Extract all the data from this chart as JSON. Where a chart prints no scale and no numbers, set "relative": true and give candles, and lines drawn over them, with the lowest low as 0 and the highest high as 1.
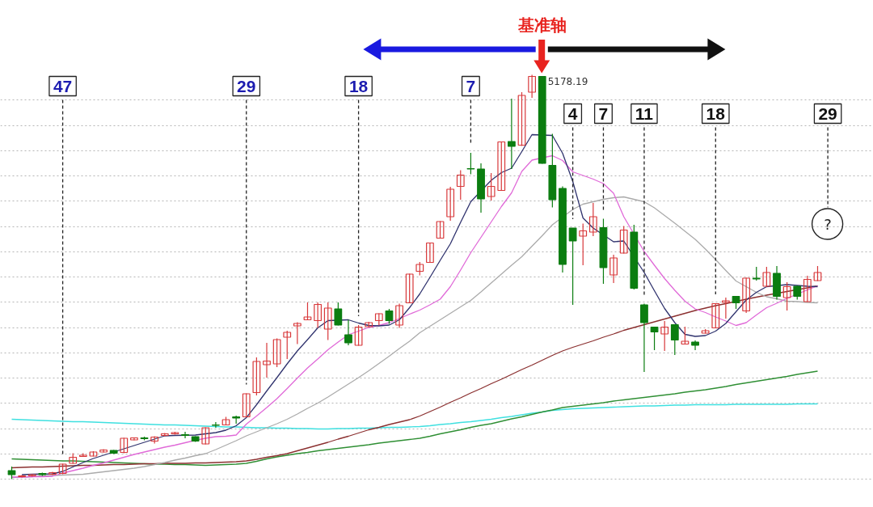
{
  "chart_data": {
    "type": "candlestick",
    "relative": true,
    "grid": "y",
    "categories": [
      null,
      null,
      null,
      null,
      null,
      null,
      null,
      null,
      null,
      null,
      null,
      null,
      null,
      null,
      null,
      null,
      null,
      null,
      null,
      null,
      null,
      null,
      null,
      null,
      null,
      null,
      null,
      null,
      null,
      null,
      null,
      null,
      null,
      null,
      null,
      null,
      null,
      null,
      null,
      null,
      null,
      null,
      null,
      null,
      null,
      null,
      null,
      null,
      null,
      null,
      null,
      null,
      null,
      null,
      null,
      null,
      null,
      null,
      null,
      null,
      null,
      null,
      null,
      null,
      null,
      null,
      null,
      null,
      null,
      null,
      null,
      null,
      null,
      null,
      null,
      null,
      null,
      null,
      null,
      null,
      null
    ],
    "ohlc": [
      [
        0.021,
        0.031,
        0.0,
        0.011
      ],
      [
        0.006,
        0.01,
        0.004,
        0.008
      ],
      [
        0.008,
        0.012,
        0.006,
        0.011
      ],
      [
        0.014,
        0.016,
        0.008,
        0.011
      ],
      [
        0.012,
        0.018,
        0.01,
        0.016
      ],
      [
        0.014,
        0.038,
        0.012,
        0.037
      ],
      [
        0.039,
        0.064,
        0.038,
        0.054
      ],
      [
        0.056,
        0.064,
        0.055,
        0.059
      ],
      [
        0.057,
        0.069,
        0.056,
        0.067
      ],
      [
        0.067,
        0.074,
        0.066,
        0.072
      ],
      [
        0.071,
        0.072,
        0.062,
        0.064
      ],
      [
        0.066,
        0.102,
        0.064,
        0.101
      ],
      [
        0.097,
        0.103,
        0.096,
        0.102
      ],
      [
        0.102,
        0.105,
        0.096,
        0.1
      ],
      [
        0.094,
        0.106,
        0.088,
        0.104
      ],
      [
        0.108,
        0.114,
        0.106,
        0.112
      ],
      [
        0.112,
        0.117,
        0.11,
        0.115
      ],
      [
        0.11,
        0.117,
        0.101,
        0.108
      ],
      [
        0.105,
        0.106,
        0.092,
        0.094
      ],
      [
        0.087,
        0.128,
        0.086,
        0.127
      ],
      [
        0.134,
        0.141,
        0.127,
        0.133
      ],
      [
        0.134,
        0.154,
        0.133,
        0.147
      ],
      [
        0.154,
        0.157,
        0.137,
        0.151
      ],
      [
        0.154,
        0.212,
        0.153,
        0.211
      ],
      [
        0.214,
        0.301,
        0.207,
        0.291
      ],
      [
        0.283,
        0.337,
        0.251,
        0.292
      ],
      [
        0.285,
        0.348,
        0.277,
        0.345
      ],
      [
        0.351,
        0.367,
        0.297,
        0.363
      ],
      [
        0.379,
        0.388,
        0.334,
        0.385
      ],
      [
        0.394,
        0.437,
        0.393,
        0.401
      ],
      [
        0.392,
        0.437,
        0.374,
        0.432
      ],
      [
        0.371,
        0.437,
        0.344,
        0.423
      ],
      [
        0.421,
        0.437,
        0.38,
        0.381
      ],
      [
        0.357,
        0.394,
        0.331,
        0.337
      ],
      [
        0.331,
        0.381,
        0.33,
        0.376
      ],
      [
        0.377,
        0.389,
        0.376,
        0.387
      ],
      [
        0.392,
        0.41,
        0.381,
        0.409
      ],
      [
        0.416,
        0.421,
        0.384,
        0.392
      ],
      [
        0.381,
        0.434,
        0.374,
        0.429
      ],
      [
        0.436,
        0.508,
        0.435,
        0.507
      ],
      [
        0.514,
        0.537,
        0.504,
        0.531
      ],
      [
        0.536,
        0.585,
        0.535,
        0.584
      ],
      [
        0.596,
        0.638,
        0.595,
        0.637
      ],
      [
        0.649,
        0.723,
        0.639,
        0.717
      ],
      [
        0.724,
        0.764,
        0.691,
        0.752
      ],
      [
        0.768,
        0.807,
        0.754,
        0.767
      ],
      [
        0.767,
        0.781,
        0.659,
        0.693
      ],
      [
        0.699,
        0.757,
        0.689,
        0.724
      ],
      [
        0.714,
        0.835,
        0.713,
        0.834
      ],
      [
        0.835,
        0.941,
        0.767,
        0.823
      ],
      [
        0.826,
        0.957,
        0.824,
        0.949
      ],
      [
        0.957,
        1.0,
        0.943,
        0.996
      ],
      [
        0.996,
        0.997,
        0.78,
        0.781
      ],
      [
        0.776,
        0.854,
        0.672,
        0.691
      ],
      [
        0.719,
        0.724,
        0.511,
        0.531
      ],
      [
        0.621,
        0.621,
        0.431,
        0.589
      ],
      [
        0.601,
        0.632,
        0.529,
        0.614
      ],
      [
        0.611,
        0.683,
        0.601,
        0.649
      ],
      [
        0.622,
        0.644,
        0.483,
        0.523
      ],
      [
        0.505,
        0.555,
        0.485,
        0.547
      ],
      [
        0.559,
        0.626,
        0.558,
        0.616
      ],
      [
        0.611,
        0.629,
        0.469,
        0.472
      ],
      [
        0.431,
        0.434,
        0.265,
        0.387
      ],
      [
        0.376,
        0.377,
        0.319,
        0.364
      ],
      [
        0.359,
        0.391,
        0.317,
        0.376
      ],
      [
        0.382,
        0.383,
        0.307,
        0.344
      ],
      [
        0.334,
        0.377,
        0.333,
        0.341
      ],
      [
        0.339,
        0.343,
        0.319,
        0.331
      ],
      [
        0.361,
        0.371,
        0.36,
        0.367
      ],
      [
        0.374,
        0.435,
        0.373,
        0.434
      ],
      [
        0.437,
        0.449,
        0.397,
        0.441
      ],
      [
        0.452,
        0.453,
        0.421,
        0.436
      ],
      [
        0.416,
        0.498,
        0.411,
        0.497
      ],
      [
        0.497,
        0.525,
        0.491,
        0.495
      ],
      [
        0.477,
        0.525,
        0.476,
        0.511
      ],
      [
        0.509,
        0.527,
        0.444,
        0.452
      ],
      [
        0.449,
        0.487,
        0.417,
        0.476
      ],
      [
        0.477,
        0.479,
        0.444,
        0.452
      ],
      [
        0.439,
        0.503,
        0.438,
        0.494
      ],
      [
        0.491,
        0.527,
        0.49,
        0.511
      ],
      null
    ],
    "colors": [
      "#0b7d10",
      "#d8383a",
      "#d8383a",
      "#0b7d10",
      "#d8383a",
      "#d8383a",
      "#d8383a",
      "#d8383a",
      "#d8383a",
      "#d8383a",
      "#0b7d10",
      "#d8383a",
      "#d8383a",
      "#0b7d10",
      "#d8383a",
      "#d8383a",
      "#d8383a",
      "#0b7d10",
      "#0b7d10",
      "#d8383a",
      "#0b7d10",
      "#d8383a",
      "#0b7d10",
      "#d8383a",
      "#d8383a",
      "#d8383a",
      "#d8383a",
      "#d8383a",
      "#d8383a",
      "#d8383a",
      "#d8383a",
      "#d8383a",
      "#0b7d10",
      "#0b7d10",
      "#d8383a",
      "#d8383a",
      "#d8383a",
      "#0b7d10",
      "#d8383a",
      "#d8383a",
      "#d8383a",
      "#d8383a",
      "#d8383a",
      "#d8383a",
      "#d8383a",
      "#0b7d10",
      "#0b7d10",
      "#d8383a",
      "#d8383a",
      "#0b7d10",
      "#d8383a",
      "#d8383a",
      "#0b7d10",
      "#0b7d10",
      "#0b7d10",
      "#0b7d10",
      "#d8383a",
      "#d8383a",
      "#0b7d10",
      "#d8383a",
      "#d8383a",
      "#0b7d10",
      "#0b7d10",
      "#0b7d10",
      "#d8383a",
      "#0b7d10",
      "#d8383a",
      "#0b7d10",
      "#d8383a",
      "#d8383a",
      "#d8383a",
      "#0b7d10",
      "#d8383a",
      "#0b7d10",
      "#d8383a",
      "#0b7d10",
      "#d8383a",
      "#0b7d10",
      "#d8383a",
      "#d8383a",
      null
    ],
    "series": [
      {
        "type": "line",
        "color": "#3fe0e0",
        "values": [
          0.148,
          0.147,
          0.146,
          0.145,
          0.144,
          0.143,
          0.142,
          0.142,
          0.141,
          0.14,
          0.139,
          0.138,
          0.137,
          0.136,
          0.135,
          0.134,
          0.134,
          0.133,
          0.132,
          0.131,
          0.13,
          0.129,
          0.129,
          0.128,
          0.127,
          0.127,
          0.126,
          0.126,
          0.125,
          0.125,
          0.124,
          0.124,
          0.125,
          0.125,
          0.126,
          0.126,
          0.127,
          0.128,
          0.128,
          0.129,
          0.13,
          0.132,
          0.135,
          0.137,
          0.14,
          0.142,
          0.145,
          0.148,
          0.152,
          0.155,
          0.159,
          0.163,
          0.166,
          0.17,
          0.172,
          0.174,
          0.175,
          0.176,
          0.177,
          0.178,
          0.179,
          0.18,
          0.181,
          0.181,
          0.182,
          0.183,
          0.183,
          0.184,
          0.184,
          0.184,
          0.184,
          0.185,
          0.185,
          0.185,
          0.185,
          0.185,
          0.185,
          0.186,
          0.186,
          0.186,
          null
        ]
      },
      {
        "type": "line",
        "color": "#2f8f34",
        "values": [
          0.05,
          0.049,
          0.048,
          0.047,
          0.046,
          0.045,
          0.045,
          0.044,
          0.043,
          0.042,
          0.041,
          0.04,
          0.039,
          0.038,
          0.037,
          0.037,
          0.036,
          0.036,
          0.035,
          0.034,
          0.035,
          0.036,
          0.037,
          0.039,
          0.044,
          0.05,
          0.055,
          0.059,
          0.063,
          0.066,
          0.07,
          0.073,
          0.076,
          0.079,
          0.082,
          0.085,
          0.089,
          0.092,
          0.095,
          0.098,
          0.101,
          0.106,
          0.112,
          0.117,
          0.122,
          0.128,
          0.133,
          0.137,
          0.143,
          0.149,
          0.154,
          0.16,
          0.166,
          0.171,
          0.177,
          0.18,
          0.183,
          0.186,
          0.189,
          0.193,
          0.196,
          0.199,
          0.202,
          0.205,
          0.208,
          0.211,
          0.215,
          0.218,
          0.221,
          0.225,
          0.229,
          0.234,
          0.238,
          0.242,
          0.246,
          0.25,
          0.254,
          0.259,
          0.263,
          0.267,
          null
        ]
      },
      {
        "type": "line",
        "color": "#8b3030",
        "values": [
          0.028,
          0.029,
          0.03,
          0.03,
          0.031,
          0.032,
          0.033,
          0.034,
          0.034,
          0.035,
          0.036,
          0.036,
          0.037,
          0.038,
          0.038,
          0.039,
          0.039,
          0.039,
          0.04,
          0.04,
          0.041,
          0.042,
          0.043,
          0.045,
          0.049,
          0.054,
          0.058,
          0.063,
          0.07,
          0.077,
          0.084,
          0.091,
          0.099,
          0.106,
          0.114,
          0.122,
          0.128,
          0.135,
          0.141,
          0.147,
          0.156,
          0.167,
          0.178,
          0.19,
          0.201,
          0.213,
          0.224,
          0.236,
          0.247,
          0.259,
          0.271,
          0.282,
          0.294,
          0.306,
          0.317,
          0.326,
          0.334,
          0.342,
          0.351,
          0.359,
          0.368,
          0.375,
          0.382,
          0.389,
          0.396,
          0.403,
          0.41,
          0.417,
          0.423,
          0.429,
          0.434,
          null,
          0.445,
          0.45,
          0.455,
          null,
          0.464,
          null,
          0.473,
          0.478,
          null
        ]
      },
      {
        "type": "line",
        "color": "#ababab",
        "values": [
          0.004,
          0.005,
          0.006,
          0.008,
          0.009,
          0.01,
          0.011,
          0.012,
          0.015,
          0.018,
          0.021,
          0.024,
          0.027,
          0.031,
          0.036,
          0.041,
          0.047,
          0.052,
          0.058,
          0.063,
          0.073,
          0.084,
          0.095,
          0.107,
          0.117,
          0.127,
          0.137,
          0.148,
          0.161,
          0.175,
          0.188,
          0.203,
          0.219,
          0.235,
          0.251,
          0.268,
          0.286,
          0.304,
          0.323,
          0.341,
          0.362,
          0.378,
          0.394,
          0.41,
          0.426,
          0.442,
          0.463,
          0.485,
          0.507,
          0.529,
          0.55,
          0.576,
          0.602,
          0.629,
          null,
          0.667,
          0.68,
          0.686,
          0.692,
          0.696,
          0.698,
          0.692,
          0.686,
          0.671,
          0.652,
          0.633,
          0.613,
          0.593,
          0.569,
          0.543,
          0.516,
          0.49,
          0.476,
          0.462,
          0.451,
          0.446,
          0.44,
          0.439,
          0.437,
          0.436,
          null
        ]
      },
      {
        "type": "line",
        "color": "#e06ad8",
        "values": [
          0.005,
          0.005,
          0.006,
          0.006,
          0.007,
          0.015,
          0.021,
          0.027,
          0.034,
          0.04,
          0.047,
          0.054,
          0.061,
          0.067,
          0.073,
          0.079,
          0.084,
          0.09,
          0.096,
          0.101,
          0.105,
          0.106,
          0.109,
          0.136,
          0.156,
          0.177,
          0.199,
          0.224,
          0.25,
          0.275,
          0.297,
          0.32,
          0.339,
          0.357,
          0.366,
          0.375,
          0.38,
          0.387,
          0.397,
          0.408,
          0.418,
          0.431,
          0.445,
          0.476,
          0.517,
          0.56,
          0.598,
          0.636,
          0.674,
          0.708,
          0.761,
          0.789,
          null,
          0.8,
          0.788,
          0.76,
          0.751,
          0.742,
          0.731,
          0.707,
          0.649,
          null,
          0.563,
          0.529,
          0.496,
          0.467,
          0.44,
          0.421,
          0.412,
          0.401,
          0.391,
          0.38,
          0.387,
          0.406,
          0.424,
          0.435,
          0.447,
          null,
          0.468,
          0.478,
          null
        ]
      },
      {
        "type": "line",
        "color": "#30336e",
        "values": [
          null,
          0.011,
          0.012,
          null,
          0.013,
          0.019,
          0.03,
          0.041,
          0.051,
          0.059,
          null,
          0.075,
          0.083,
          0.091,
          0.099,
          0.107,
          0.108,
          null,
          0.109,
          0.112,
          0.115,
          0.121,
          0.132,
          0.152,
          0.184,
          0.218,
          0.251,
          0.285,
          0.317,
          0.345,
          0.374,
          0.392,
          null,
          0.394,
          0.386,
          0.38,
          0.379,
          0.381,
          0.394,
          0.424,
          0.458,
          0.499,
          0.541,
          0.582,
          0.635,
          0.686,
          null,
          0.739,
          0.758,
          0.769,
          0.81,
          0.852,
          null,
          0.85,
          0.806,
          0.736,
          0.646,
          0.621,
          null,
          0.587,
          0.589,
          null,
          0.511,
          0.466,
          0.422,
          0.387,
          0.358,
          0.353,
          0.355,
          0.366,
          0.385,
          0.414,
          0.443,
          0.462,
          0.476,
          null,
          0.481,
          0.479,
          0.477,
          0.476,
          null
        ]
      }
    ],
    "annotations": [
      "基准轴",
      "5178.19",
      "47",
      "29",
      "18",
      "7",
      "4",
      "7",
      "11",
      "18",
      "29",
      "?"
    ]
  }
}
